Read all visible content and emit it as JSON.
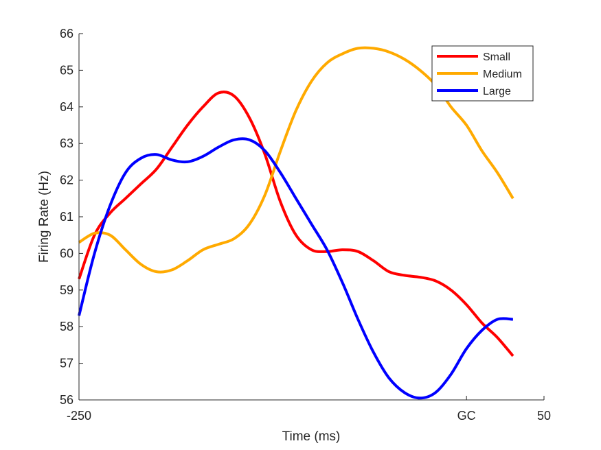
{
  "chart_data": {
    "type": "line",
    "title": "",
    "xlabel": "Time (ms)",
    "ylabel": "Firing Rate (Hz)",
    "xlim": [
      -250,
      50
    ],
    "ylim": [
      56,
      66
    ],
    "xticks": [
      {
        "value": -250,
        "label": "-250"
      },
      {
        "value": 0,
        "label": "GC"
      },
      {
        "value": 50,
        "label": "50"
      }
    ],
    "yticks": [
      {
        "value": 56,
        "label": "56"
      },
      {
        "value": 57,
        "label": "57"
      },
      {
        "value": 58,
        "label": "58"
      },
      {
        "value": 59,
        "label": "59"
      },
      {
        "value": 60,
        "label": "60"
      },
      {
        "value": 61,
        "label": "61"
      },
      {
        "value": 62,
        "label": "62"
      },
      {
        "value": 63,
        "label": "63"
      },
      {
        "value": 64,
        "label": "64"
      },
      {
        "value": 65,
        "label": "65"
      },
      {
        "value": 66,
        "label": "66"
      }
    ],
    "grid": false,
    "legend_position": "top-right",
    "series": [
      {
        "name": "Small",
        "color": "#ff0000",
        "points": [
          [
            -250,
            59.3
          ],
          [
            -240,
            60.5
          ],
          [
            -230,
            61.1
          ],
          [
            -220,
            61.5
          ],
          [
            -210,
            61.9
          ],
          [
            -200,
            62.3
          ],
          [
            -190,
            62.9
          ],
          [
            -180,
            63.5
          ],
          [
            -170,
            64.0
          ],
          [
            -160,
            64.38
          ],
          [
            -150,
            64.3
          ],
          [
            -140,
            63.7
          ],
          [
            -130,
            62.7
          ],
          [
            -120,
            61.4
          ],
          [
            -110,
            60.5
          ],
          [
            -100,
            60.1
          ],
          [
            -90,
            60.05
          ],
          [
            -80,
            60.1
          ],
          [
            -70,
            60.05
          ],
          [
            -60,
            59.8
          ],
          [
            -50,
            59.5
          ],
          [
            -40,
            59.4
          ],
          [
            -30,
            59.35
          ],
          [
            -20,
            59.25
          ],
          [
            -10,
            59.0
          ],
          [
            0,
            58.6
          ],
          [
            10,
            58.1
          ],
          [
            20,
            57.7
          ],
          [
            30,
            57.2
          ]
        ]
      },
      {
        "name": "Medium",
        "color": "#ffaa00",
        "points": [
          [
            -250,
            60.3
          ],
          [
            -240,
            60.55
          ],
          [
            -230,
            60.5
          ],
          [
            -220,
            60.1
          ],
          [
            -210,
            59.7
          ],
          [
            -200,
            59.5
          ],
          [
            -190,
            59.55
          ],
          [
            -180,
            59.8
          ],
          [
            -170,
            60.1
          ],
          [
            -160,
            60.25
          ],
          [
            -150,
            60.4
          ],
          [
            -140,
            60.8
          ],
          [
            -130,
            61.6
          ],
          [
            -120,
            62.8
          ],
          [
            -110,
            63.9
          ],
          [
            -100,
            64.7
          ],
          [
            -90,
            65.2
          ],
          [
            -80,
            65.45
          ],
          [
            -70,
            65.6
          ],
          [
            -60,
            65.6
          ],
          [
            -50,
            65.5
          ],
          [
            -40,
            65.3
          ],
          [
            -30,
            65.0
          ],
          [
            -20,
            64.6
          ],
          [
            -10,
            64.0
          ],
          [
            0,
            63.5
          ],
          [
            10,
            62.8
          ],
          [
            20,
            62.2
          ],
          [
            30,
            61.5
          ]
        ]
      },
      {
        "name": "Large",
        "color": "#0000ff",
        "points": [
          [
            -250,
            58.3
          ],
          [
            -240,
            60.0
          ],
          [
            -230,
            61.3
          ],
          [
            -220,
            62.2
          ],
          [
            -210,
            62.6
          ],
          [
            -200,
            62.7
          ],
          [
            -190,
            62.55
          ],
          [
            -180,
            62.5
          ],
          [
            -170,
            62.65
          ],
          [
            -160,
            62.9
          ],
          [
            -150,
            63.1
          ],
          [
            -140,
            63.1
          ],
          [
            -130,
            62.8
          ],
          [
            -120,
            62.2
          ],
          [
            -110,
            61.5
          ],
          [
            -100,
            60.8
          ],
          [
            -90,
            60.1
          ],
          [
            -80,
            59.2
          ],
          [
            -70,
            58.2
          ],
          [
            -60,
            57.3
          ],
          [
            -50,
            56.6
          ],
          [
            -40,
            56.2
          ],
          [
            -30,
            56.05
          ],
          [
            -20,
            56.2
          ],
          [
            -10,
            56.7
          ],
          [
            0,
            57.4
          ],
          [
            10,
            57.9
          ],
          [
            20,
            58.2
          ],
          [
            30,
            58.2
          ]
        ]
      }
    ]
  }
}
